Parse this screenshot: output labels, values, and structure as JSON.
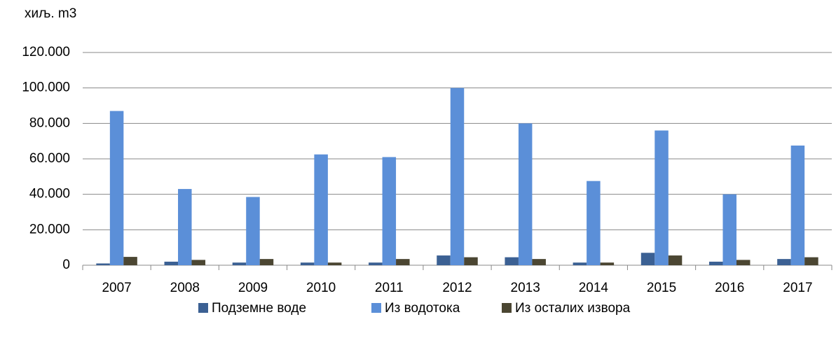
{
  "chart_data": {
    "type": "bar",
    "unit_label": "хиљ. m3",
    "categories": [
      "2007",
      "2008",
      "2009",
      "2010",
      "2011",
      "2012",
      "2013",
      "2014",
      "2015",
      "2016",
      "2017"
    ],
    "series": [
      {
        "name": "Подземне воде",
        "color": "#3b6093",
        "values": [
          1000,
          2000,
          1500,
          1500,
          1500,
          5500,
          4500,
          1500,
          7000,
          2000,
          3500
        ]
      },
      {
        "name": "Из водотока",
        "color": "#5b8fd8",
        "values": [
          87000,
          43000,
          38500,
          62500,
          61000,
          100000,
          80000,
          47500,
          76000,
          40000,
          67500
        ]
      },
      {
        "name": "Из осталих извора",
        "color": "#4b4632",
        "values": [
          4700,
          3000,
          3500,
          1500,
          3500,
          4500,
          3500,
          1500,
          5500,
          3000,
          4500
        ]
      }
    ],
    "ylim": [
      0,
      120000
    ],
    "yticks": [
      {
        "value": 0,
        "label": "0"
      },
      {
        "value": 20000,
        "label": "20.000"
      },
      {
        "value": 40000,
        "label": "40.000"
      },
      {
        "value": 60000,
        "label": "60.000"
      },
      {
        "value": 80000,
        "label": "80.000"
      },
      {
        "value": 100000,
        "label": "100.000"
      },
      {
        "value": 120000,
        "label": "120.000"
      }
    ],
    "grid": true
  }
}
